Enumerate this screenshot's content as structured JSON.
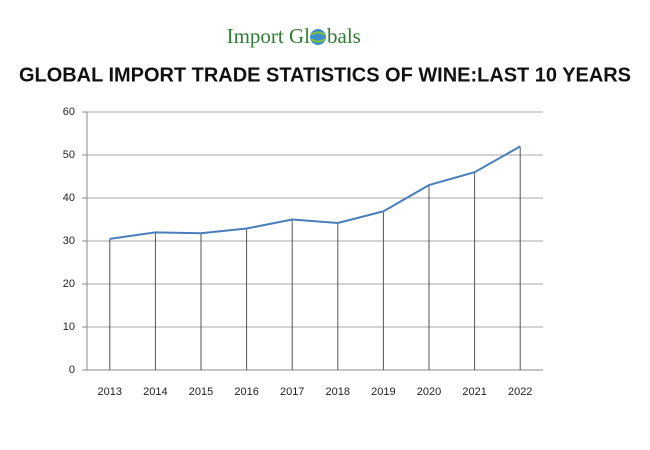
{
  "logo_parts": [
    "Import Gl",
    "bals"
  ],
  "chart_data": {
    "type": "line",
    "title": "GLOBAL IMPORT TRADE STATISTICS OF WINE:LAST 10 YEARS",
    "categories": [
      "2013",
      "2014",
      "2015",
      "2016",
      "2017",
      "2018",
      "2019",
      "2020",
      "2021",
      "2022"
    ],
    "values": [
      30.5,
      32,
      31.8,
      32.9,
      35,
      34.2,
      36.9,
      43,
      46,
      52
    ],
    "color": "#4a7ebb",
    "ylim": [
      0,
      60
    ],
    "yticks": [
      0,
      10,
      20,
      30,
      40,
      50,
      60
    ],
    "grid": true,
    "drop_lines": true
  }
}
